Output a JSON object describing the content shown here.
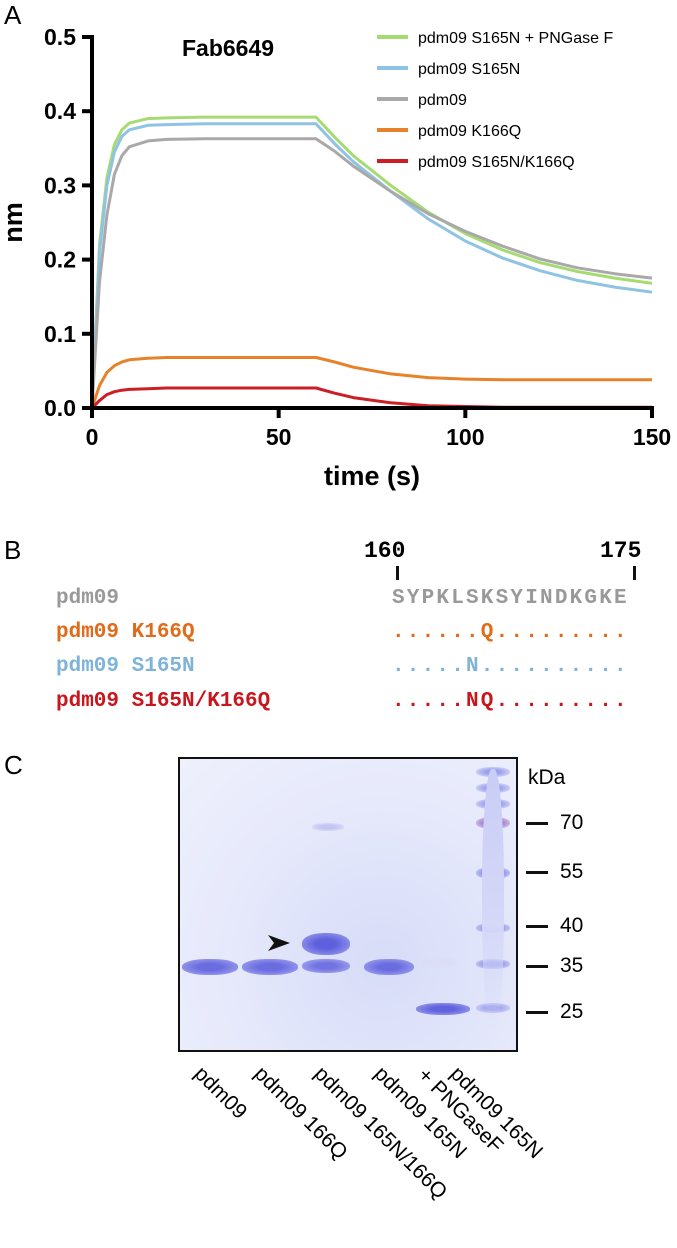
{
  "panels": {
    "a": "A",
    "b": "B",
    "c": "C"
  },
  "chart_data": {
    "type": "line",
    "title": "Fab6649",
    "xlabel": "time (s)",
    "ylabel": "nm",
    "xlim": [
      0,
      150
    ],
    "ylim": [
      0,
      0.5
    ],
    "xticks": [
      "0",
      "50",
      "100",
      "150"
    ],
    "yticks": [
      "0.0",
      "0.1",
      "0.2",
      "0.3",
      "0.4",
      "0.5"
    ],
    "legend_position": "top-right",
    "x": [
      0,
      2,
      4,
      6,
      8,
      10,
      15,
      20,
      30,
      40,
      50,
      60,
      65,
      70,
      80,
      90,
      100,
      110,
      120,
      130,
      140,
      150
    ],
    "series": [
      {
        "name": "pdm09 S165N + PNGase F",
        "color": "#a6db74",
        "values": [
          0,
          0.22,
          0.31,
          0.355,
          0.375,
          0.384,
          0.39,
          0.391,
          0.392,
          0.392,
          0.392,
          0.392,
          0.365,
          0.34,
          0.3,
          0.264,
          0.235,
          0.213,
          0.196,
          0.184,
          0.175,
          0.168
        ]
      },
      {
        "name": "pdm09 S165N",
        "color": "#8fc3e3",
        "values": [
          0,
          0.21,
          0.3,
          0.345,
          0.366,
          0.375,
          0.381,
          0.382,
          0.383,
          0.383,
          0.383,
          0.383,
          0.356,
          0.332,
          0.292,
          0.255,
          0.225,
          0.202,
          0.185,
          0.172,
          0.163,
          0.156
        ]
      },
      {
        "name": "pdm09",
        "color": "#a9a9a9",
        "values": [
          0,
          0.17,
          0.26,
          0.315,
          0.34,
          0.352,
          0.36,
          0.362,
          0.363,
          0.363,
          0.363,
          0.363,
          0.346,
          0.326,
          0.292,
          0.262,
          0.238,
          0.218,
          0.201,
          0.189,
          0.181,
          0.175
        ]
      },
      {
        "name": "pdm09 K166Q",
        "color": "#e8822a",
        "values": [
          0,
          0.03,
          0.048,
          0.057,
          0.062,
          0.065,
          0.067,
          0.068,
          0.068,
          0.068,
          0.068,
          0.068,
          0.062,
          0.055,
          0.046,
          0.041,
          0.039,
          0.038,
          0.038,
          0.038,
          0.038,
          0.038
        ]
      },
      {
        "name": "pdm09 S165N/K166Q",
        "color": "#cc1e24",
        "values": [
          0,
          0.01,
          0.018,
          0.022,
          0.024,
          0.025,
          0.026,
          0.027,
          0.027,
          0.027,
          0.027,
          0.027,
          0.02,
          0.014,
          0.007,
          0.003,
          0.002,
          0.001,
          0.001,
          0.001,
          0.001,
          0.001
        ]
      }
    ]
  },
  "sequence": {
    "pos_start": "160",
    "pos_end": "175",
    "rows": [
      {
        "label": "pdm09",
        "seq": "SYPKLSKSYINDKGKE",
        "color": "#999999"
      },
      {
        "label": "pdm09 K166Q",
        "seq": "......Q.........",
        "color": "#e06b1a"
      },
      {
        "label": "pdm09 S165N",
        "seq": ".....N..........",
        "color": "#7fb3d8"
      },
      {
        "label": "pdm09 S165N/K166Q",
        "seq": ".....NQ.........",
        "color": "#c8161d"
      }
    ]
  },
  "gel": {
    "unit": "kDa",
    "markers": [
      "70",
      "55",
      "40",
      "35",
      "25"
    ],
    "lanes": [
      [
        "pdm09"
      ],
      [
        "pdm09 166Q"
      ],
      [
        "pdm09 165N/166Q"
      ],
      [
        "pdm09 165N"
      ],
      [
        "pdm09 165N",
        "+ PNGaseF"
      ]
    ]
  }
}
